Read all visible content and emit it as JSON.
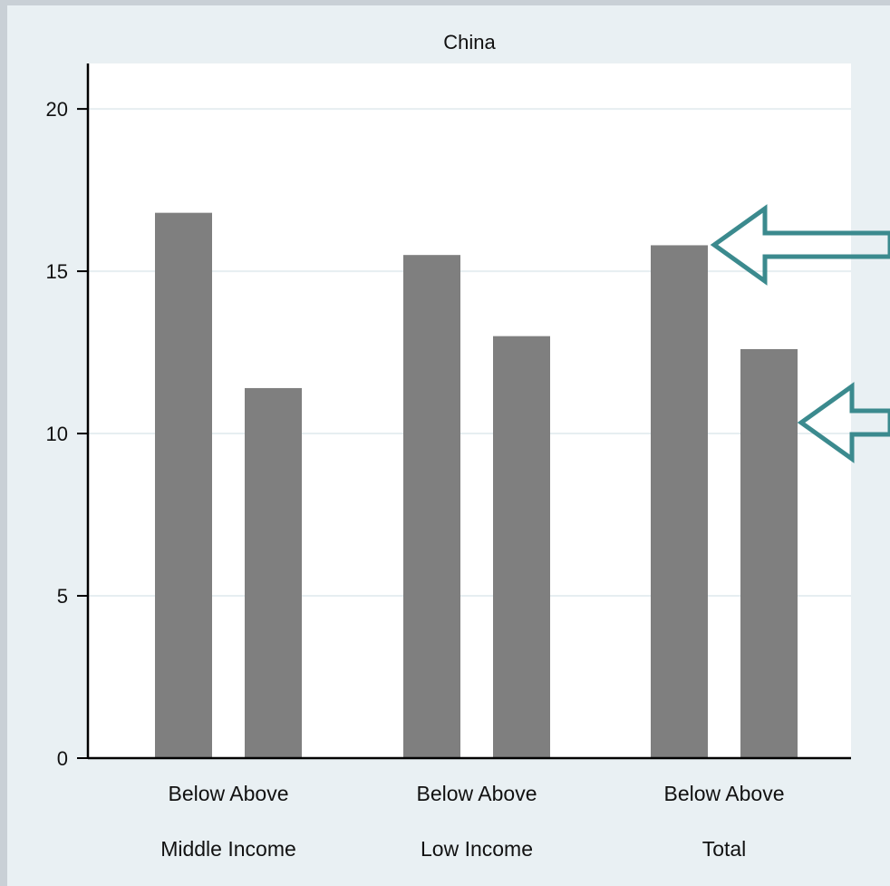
{
  "chart_data": {
    "type": "bar",
    "title": "China",
    "xlabel": "",
    "ylabel": "",
    "ylim": [
      0,
      21.4
    ],
    "yticks": [
      0,
      5,
      10,
      15,
      20
    ],
    "grid": true,
    "groups": [
      {
        "label": "Middle Income",
        "bars": [
          {
            "label": "Below",
            "value": 16.8
          },
          {
            "label": "Above",
            "value": 11.4
          }
        ]
      },
      {
        "label": "Low Income",
        "bars": [
          {
            "label": "Below",
            "value": 15.5
          },
          {
            "label": "Above",
            "value": 13.0
          }
        ]
      },
      {
        "label": "Total",
        "bars": [
          {
            "label": "Below",
            "value": 15.8
          },
          {
            "label": "Above",
            "value": 12.6
          }
        ]
      }
    ],
    "annotations": [
      {
        "type": "arrow",
        "points_to": "Total Below"
      },
      {
        "type": "arrow",
        "points_to": "Total Above"
      }
    ]
  },
  "colors": {
    "bar": "#7f7f7f",
    "plot_bg": "#ffffff",
    "figure_bg": "#e9f0f3",
    "outer_bg": "#c9d0d6",
    "grid": "#e6eef1",
    "arrow": "#3b8a8e",
    "axis": "#000000"
  }
}
